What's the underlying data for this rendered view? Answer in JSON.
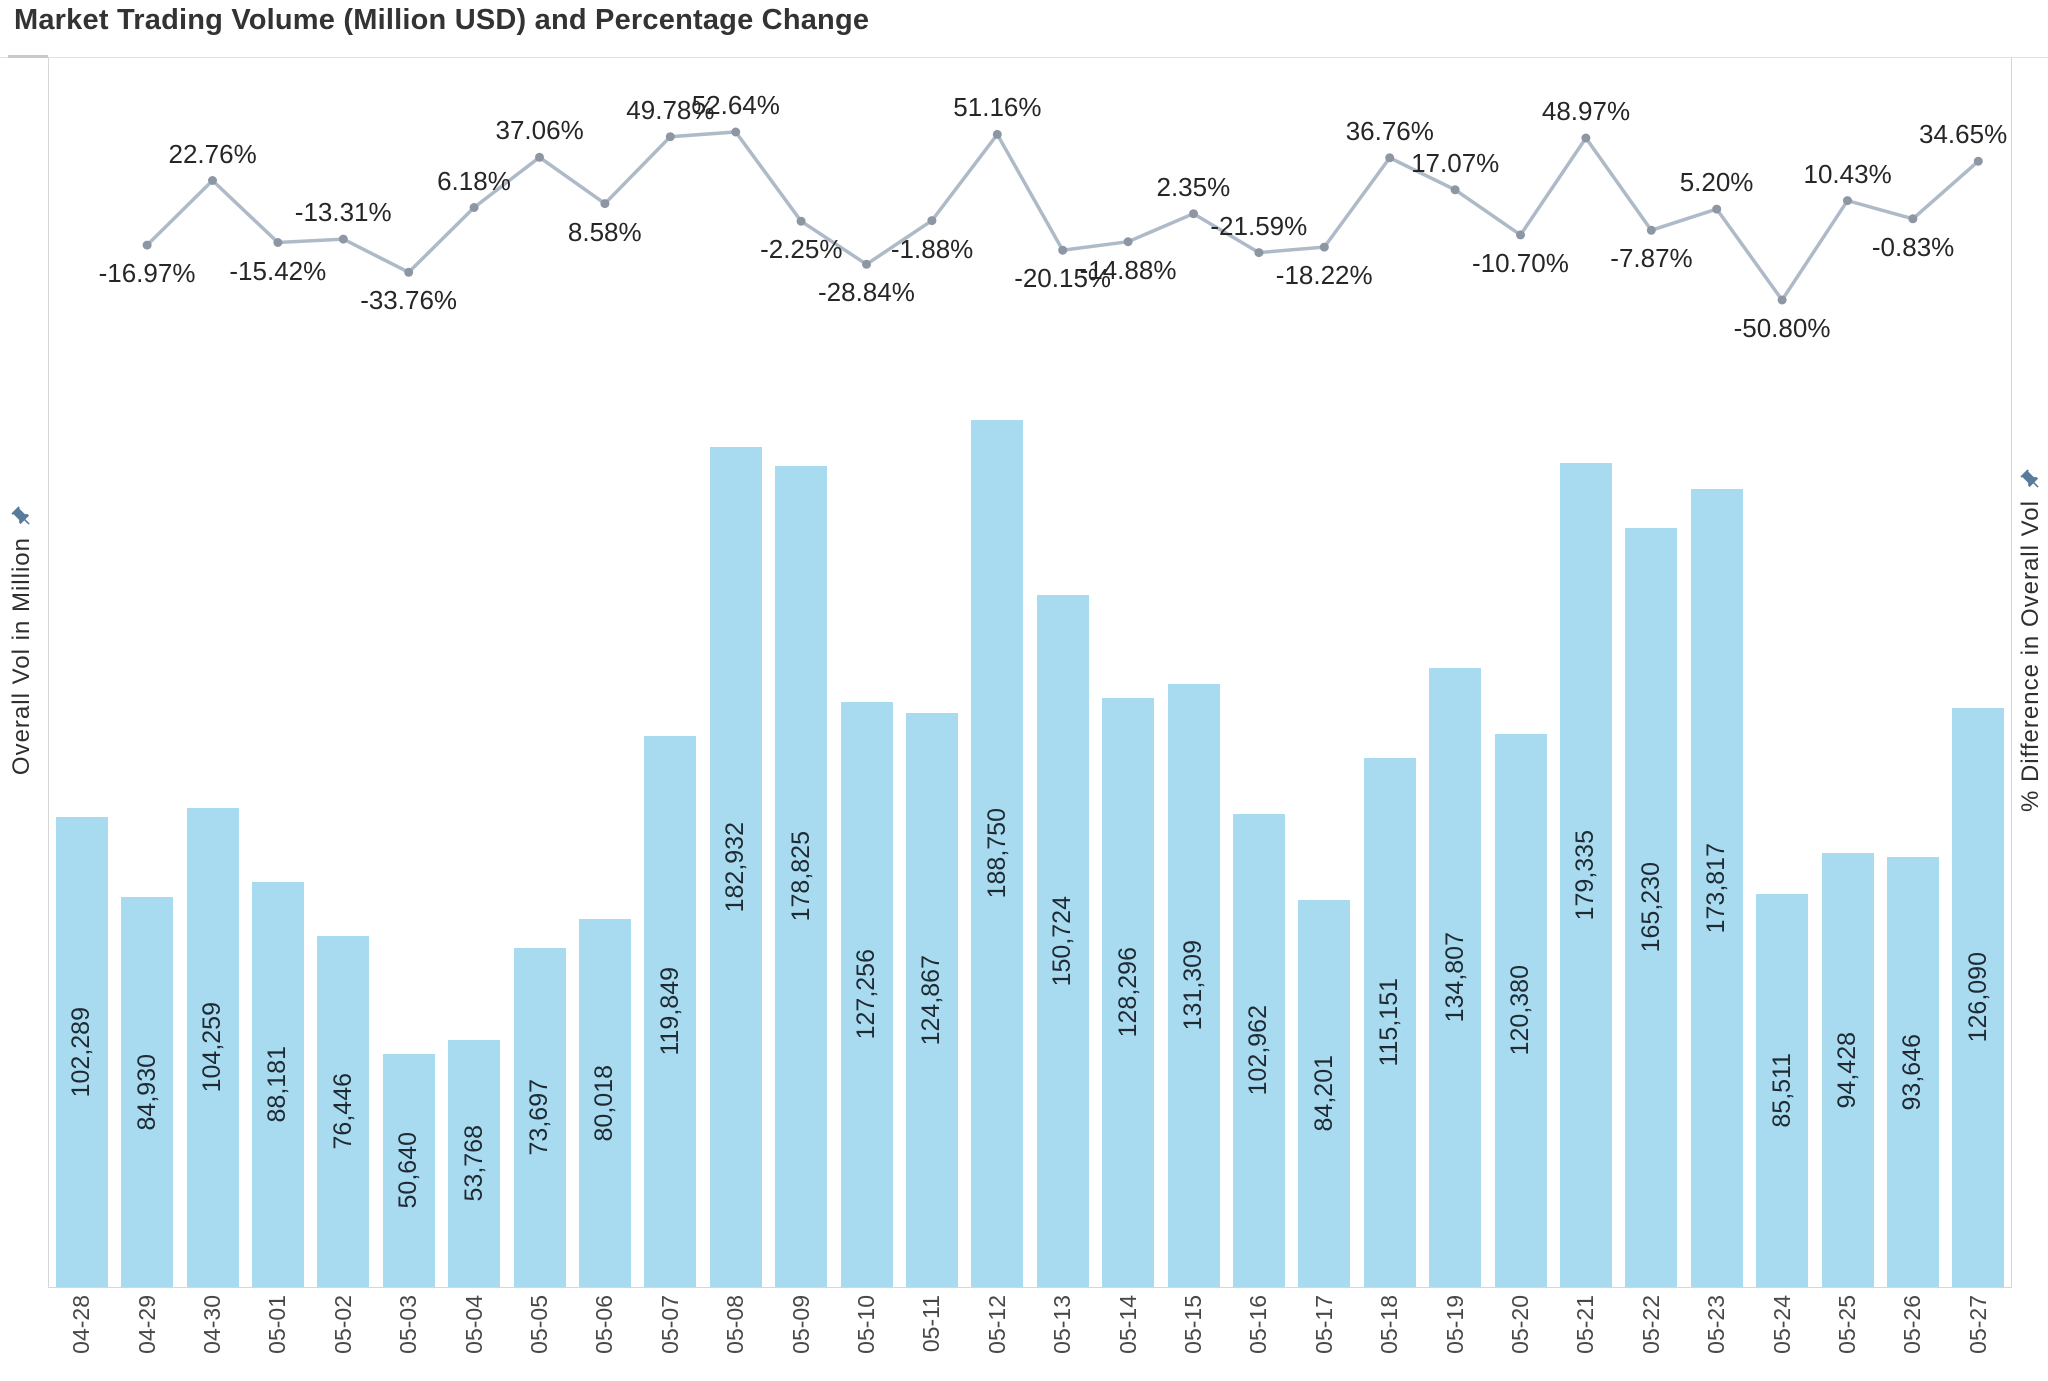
{
  "header": {
    "title": "Market Trading Volume (Million USD) and Percentage Change"
  },
  "axes": {
    "left_title": "Overall Vol in Million",
    "right_title": "% Difference in Overall Vol",
    "left_pin_icon": "pushpin-icon",
    "right_pin_icon": "pushpin-icon"
  },
  "colors": {
    "bar_fill": "#a8dbf0",
    "line_stroke": "#aebac8",
    "marker_fill": "#8d96a3",
    "pin": "#587a9b",
    "label_text": "#262626",
    "axis_border": "#d6d6d6"
  },
  "chart_data": {
    "type": "combo (bar + line)",
    "title": "Market Trading Volume (Million USD) and Percentage Change",
    "grid": false,
    "legend": "none",
    "categories": [
      "04-28",
      "04-29",
      "04-30",
      "05-01",
      "05-02",
      "05-03",
      "05-04",
      "05-05",
      "05-06",
      "05-07",
      "05-08",
      "05-09",
      "05-10",
      "05-11",
      "05-12",
      "05-13",
      "05-14",
      "05-15",
      "05-16",
      "05-17",
      "05-18",
      "05-19",
      "05-20",
      "05-21",
      "05-22",
      "05-23",
      "05-24",
      "05-25",
      "05-26",
      "05-27"
    ],
    "series": [
      {
        "name": "Overall Vol in Million",
        "type": "bar",
        "axis": "left",
        "ylim_hint": [
          0,
          190000
        ],
        "values": [
          102289,
          84930,
          104259,
          88181,
          76446,
          50640,
          53768,
          73697,
          80018,
          119849,
          182932,
          178825,
          127256,
          124867,
          188750,
          150724,
          128296,
          131309,
          102962,
          84201,
          115151,
          134807,
          120380,
          179335,
          165230,
          173817,
          85511,
          94428,
          93646,
          126090
        ],
        "value_labels": [
          "102,289",
          "84,930",
          "104,259",
          "88,181",
          "76,446",
          "50,640",
          "53,768",
          "73,697",
          "80,018",
          "119,849",
          "182,932",
          "178,825",
          "127,256",
          "124,867",
          "188,750",
          "150,724",
          "128,296",
          "131,309",
          "102,962",
          "84,201",
          "115,151",
          "134,807",
          "120,380",
          "179,335",
          "165,230",
          "173,817",
          "85,511",
          "94,428",
          "93,646",
          "126,090"
        ]
      },
      {
        "name": "% Difference in Overall Vol",
        "type": "line",
        "axis": "right",
        "ylim_hint": [
          -60,
          60
        ],
        "start_category": "04-29",
        "values": [
          -16.97,
          22.76,
          -15.42,
          -13.31,
          -33.76,
          6.18,
          37.06,
          8.58,
          49.78,
          52.64,
          -2.25,
          -28.84,
          -1.88,
          51.16,
          -20.15,
          -14.88,
          2.35,
          -21.59,
          -18.22,
          36.76,
          17.07,
          -10.7,
          48.97,
          -7.87,
          5.2,
          -50.8,
          10.43,
          -0.83,
          34.65
        ],
        "value_labels": [
          "-16.97%",
          "22.76%",
          "-15.42%",
          "-13.31%",
          "-33.76%",
          "6.18%",
          "37.06%",
          "8.58%",
          "49.78%",
          "52.64%",
          "-2.25%",
          "-28.84%",
          "-1.88%",
          "51.16%",
          "-20.15%",
          "-14.88%",
          "2.35%",
          "-21.59%",
          "-18.22%",
          "36.76%",
          "17.07%",
          "-10.70%",
          "48.97%",
          "-7.87%",
          "5.20%",
          "-50.80%",
          "10.43%",
          "-0.83%",
          "34.65%"
        ],
        "label_positions": [
          "below",
          "above",
          "below",
          "above",
          "below",
          "above",
          "above",
          "below",
          "above",
          "above",
          "below",
          "below",
          "below",
          "above",
          "below",
          "below",
          "above",
          "above",
          "below",
          "above",
          "above",
          "below",
          "above",
          "below",
          "above",
          "below",
          "above",
          "below",
          "above"
        ]
      }
    ]
  }
}
